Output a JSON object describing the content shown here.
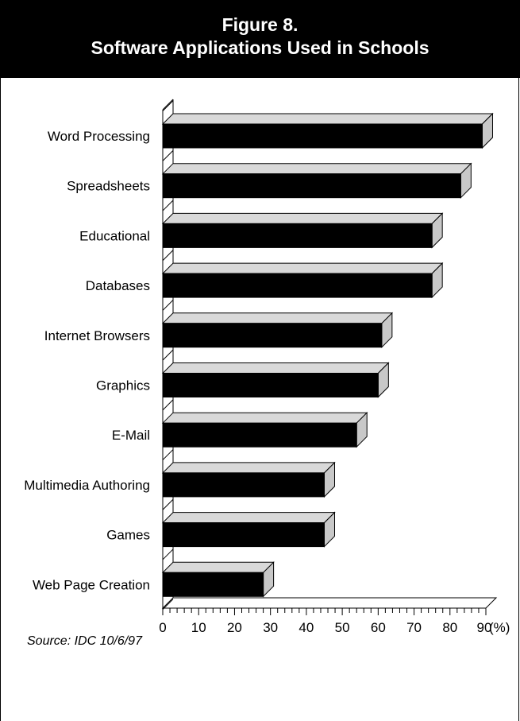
{
  "header": {
    "figure_label": "Figure 8.",
    "title": "Software Applications Used in Schools"
  },
  "source": "Source: IDC 10/6/97",
  "chart_data": {
    "type": "bar",
    "orientation": "horizontal",
    "title": "Software Applications Used in Schools",
    "categories": [
      "Word Processing",
      "Spreadsheets",
      "Educational",
      "Databases",
      "Internet Browsers",
      "Graphics",
      "E-Mail",
      "Multimedia Authoring",
      "Games",
      "Web Page Creation"
    ],
    "values": [
      89,
      83,
      75,
      75,
      61,
      60,
      54,
      45,
      45,
      28
    ],
    "xlim": [
      0,
      90
    ],
    "xticks": [
      "0",
      "10",
      "20",
      "30",
      "40",
      "50",
      "60",
      "70",
      "80",
      "90"
    ],
    "xunit": "(%)",
    "grid": false,
    "style": "3d",
    "colors": {
      "bar_front": "#000000",
      "bar_top": "#d9d9d9",
      "bar_side": "#c8c8c8"
    }
  }
}
